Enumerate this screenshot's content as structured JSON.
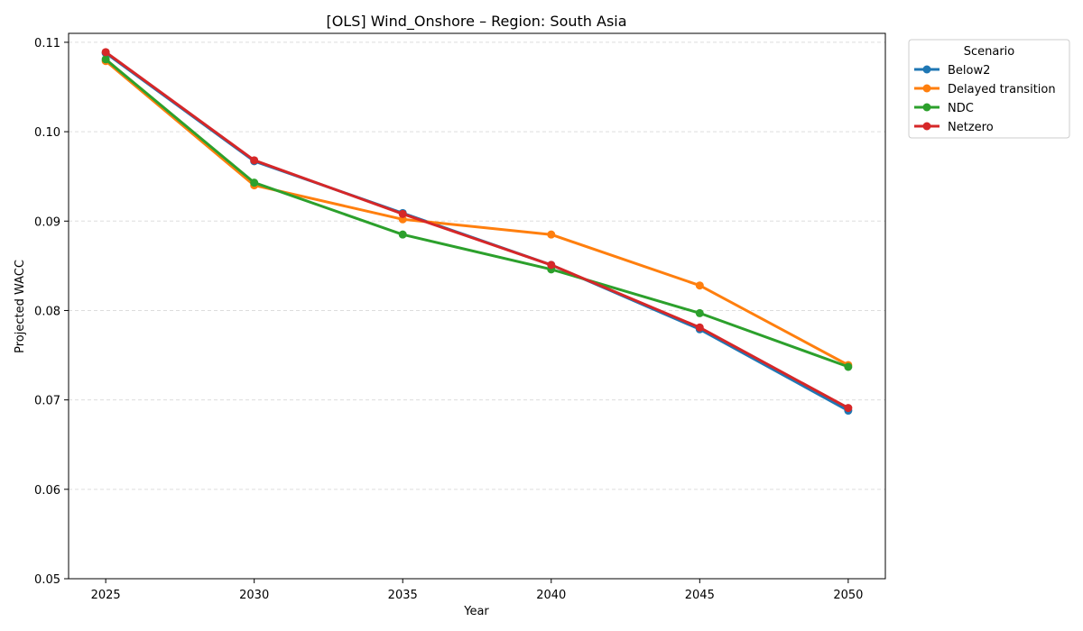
{
  "chart_data": {
    "type": "line",
    "title": "[OLS] Wind_Onshore – Region: South Asia",
    "xlabel": "Year",
    "ylabel": "Projected WACC",
    "x": [
      2025,
      2030,
      2035,
      2040,
      2045,
      2050
    ],
    "x_tick_labels": [
      "2025",
      "2030",
      "2035",
      "2040",
      "2045",
      "2050"
    ],
    "y_tick_values": [
      0.05,
      0.06,
      0.07,
      0.08,
      0.09,
      0.1,
      0.11
    ],
    "y_tick_labels": [
      "0.05",
      "0.06",
      "0.07",
      "0.08",
      "0.09",
      "0.10",
      "0.11"
    ],
    "xlim": [
      2023.75,
      2051.25
    ],
    "ylim": [
      0.05,
      0.111
    ],
    "grid": "y-dashed",
    "legend": {
      "title": "Scenario",
      "placement": "outside-top-right"
    },
    "series": [
      {
        "name": "Below2",
        "color": "#1f77b4",
        "values": [
          0.1088,
          0.0967,
          0.0909,
          0.0851,
          0.0779,
          0.0688
        ]
      },
      {
        "name": "Delayed transition",
        "color": "#ff7f0e",
        "values": [
          0.1079,
          0.094,
          0.0902,
          0.0885,
          0.0828,
          0.0739
        ]
      },
      {
        "name": "NDC",
        "color": "#2ca02c",
        "values": [
          0.1081,
          0.0943,
          0.0885,
          0.0846,
          0.0797,
          0.0737
        ]
      },
      {
        "name": "Netzero",
        "color": "#d62728",
        "values": [
          0.1089,
          0.0968,
          0.0908,
          0.0851,
          0.0781,
          0.0691
        ]
      }
    ]
  }
}
